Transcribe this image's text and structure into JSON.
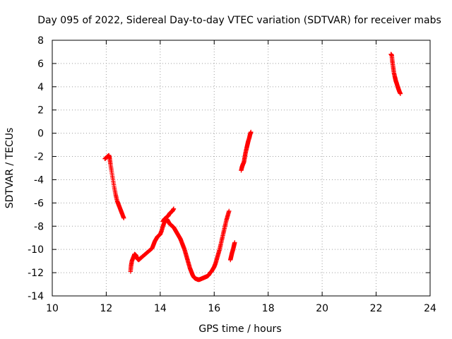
{
  "chart_data": {
    "type": "scatter",
    "title": "Day 095 of 2022, Sidereal Day-to-day VTEC variation (SDTVAR) for receiver mabs",
    "xlabel": "GPS time / hours",
    "ylabel": "SDTVAR / TECUs",
    "xlim": [
      10,
      24
    ],
    "ylim": [
      -14,
      8
    ],
    "xticks": [
      10,
      12,
      14,
      16,
      18,
      20,
      22,
      24
    ],
    "yticks": [
      -14,
      -12,
      -10,
      -8,
      -6,
      -4,
      -2,
      0,
      2,
      4,
      6,
      8
    ],
    "grid": true,
    "marker": "plus",
    "series_color": "#ff0000",
    "segments": [
      [
        [
          11.95,
          -2.2
        ],
        [
          12.0,
          -2.1
        ],
        [
          12.05,
          -2.0
        ],
        [
          12.1,
          -1.9
        ],
        [
          12.13,
          -2.2
        ],
        [
          12.16,
          -2.7
        ],
        [
          12.2,
          -3.3
        ],
        [
          12.25,
          -4.0
        ],
        [
          12.3,
          -4.7
        ],
        [
          12.35,
          -5.3
        ],
        [
          12.4,
          -5.8
        ],
        [
          12.45,
          -6.1
        ],
        [
          12.5,
          -6.4
        ],
        [
          12.55,
          -6.7
        ],
        [
          12.6,
          -7.0
        ],
        [
          12.65,
          -7.3
        ]
      ],
      [
        [
          12.9,
          -11.9
        ],
        [
          12.92,
          -11.4
        ],
        [
          12.95,
          -11.0
        ],
        [
          13.0,
          -10.7
        ],
        [
          13.05,
          -10.4
        ],
        [
          13.1,
          -10.5
        ],
        [
          13.15,
          -10.8
        ],
        [
          13.2,
          -10.9
        ],
        [
          13.25,
          -10.8
        ],
        [
          13.3,
          -10.7
        ],
        [
          13.4,
          -10.5
        ],
        [
          13.5,
          -10.3
        ],
        [
          13.6,
          -10.1
        ],
        [
          13.7,
          -9.9
        ],
        [
          13.75,
          -9.6
        ],
        [
          13.8,
          -9.3
        ],
        [
          13.85,
          -9.1
        ],
        [
          13.9,
          -8.9
        ],
        [
          13.95,
          -8.8
        ],
        [
          14.0,
          -8.7
        ],
        [
          14.05,
          -8.4
        ],
        [
          14.1,
          -8.0
        ],
        [
          14.15,
          -7.7
        ],
        [
          14.2,
          -7.5
        ],
        [
          14.25,
          -7.4
        ],
        [
          14.3,
          -7.6
        ],
        [
          14.35,
          -7.8
        ],
        [
          14.4,
          -7.9
        ],
        [
          14.45,
          -8.0
        ],
        [
          14.5,
          -8.1
        ],
        [
          14.55,
          -8.3
        ],
        [
          14.6,
          -8.5
        ],
        [
          14.65,
          -8.7
        ],
        [
          14.7,
          -8.9
        ],
        [
          14.75,
          -9.1
        ],
        [
          14.8,
          -9.4
        ],
        [
          14.85,
          -9.7
        ],
        [
          14.9,
          -10.0
        ],
        [
          14.95,
          -10.4
        ],
        [
          15.0,
          -10.8
        ],
        [
          15.05,
          -11.2
        ],
        [
          15.1,
          -11.6
        ],
        [
          15.15,
          -11.9
        ],
        [
          15.2,
          -12.2
        ],
        [
          15.25,
          -12.4
        ],
        [
          15.3,
          -12.5
        ],
        [
          15.35,
          -12.55
        ],
        [
          15.4,
          -12.6
        ],
        [
          15.45,
          -12.6
        ],
        [
          15.5,
          -12.55
        ],
        [
          15.55,
          -12.5
        ],
        [
          15.6,
          -12.45
        ],
        [
          15.65,
          -12.4
        ],
        [
          15.7,
          -12.35
        ],
        [
          15.75,
          -12.3
        ],
        [
          15.8,
          -12.2
        ],
        [
          15.85,
          -12.0
        ],
        [
          15.9,
          -11.9
        ],
        [
          15.95,
          -11.7
        ],
        [
          16.0,
          -11.5
        ],
        [
          16.05,
          -11.2
        ],
        [
          16.1,
          -10.8
        ],
        [
          16.15,
          -10.4
        ],
        [
          16.2,
          -10.0
        ],
        [
          16.25,
          -9.5
        ],
        [
          16.3,
          -9.0
        ],
        [
          16.35,
          -8.5
        ],
        [
          16.4,
          -8.0
        ],
        [
          16.45,
          -7.5
        ],
        [
          16.5,
          -7.1
        ],
        [
          16.55,
          -6.7
        ]
      ],
      [
        [
          14.1,
          -7.6
        ],
        [
          14.15,
          -7.4
        ],
        [
          14.2,
          -7.3
        ],
        [
          14.25,
          -7.2
        ],
        [
          14.3,
          -7.1
        ],
        [
          14.35,
          -6.9
        ],
        [
          14.4,
          -6.8
        ],
        [
          14.45,
          -6.7
        ],
        [
          14.5,
          -6.5
        ]
      ],
      [
        [
          16.6,
          -10.9
        ],
        [
          16.63,
          -10.6
        ],
        [
          16.66,
          -10.3
        ],
        [
          16.7,
          -10.0
        ],
        [
          16.73,
          -9.7
        ],
        [
          16.76,
          -9.4
        ]
      ],
      [
        [
          17.0,
          -3.2
        ],
        [
          17.03,
          -2.9
        ],
        [
          17.06,
          -2.7
        ],
        [
          17.1,
          -2.5
        ],
        [
          17.13,
          -2.1
        ],
        [
          17.16,
          -1.7
        ],
        [
          17.2,
          -1.3
        ],
        [
          17.23,
          -1.0
        ],
        [
          17.26,
          -0.7
        ],
        [
          17.3,
          -0.4
        ],
        [
          17.33,
          -0.1
        ],
        [
          17.36,
          0.1
        ]
      ],
      [
        [
          22.55,
          6.8
        ],
        [
          22.58,
          6.7
        ],
        [
          22.6,
          6.2
        ],
        [
          22.63,
          5.7
        ],
        [
          22.66,
          5.2
        ],
        [
          22.7,
          4.8
        ],
        [
          22.73,
          4.5
        ],
        [
          22.76,
          4.3
        ],
        [
          22.8,
          4.0
        ],
        [
          22.83,
          3.8
        ],
        [
          22.86,
          3.6
        ],
        [
          22.9,
          3.4
        ]
      ]
    ]
  }
}
